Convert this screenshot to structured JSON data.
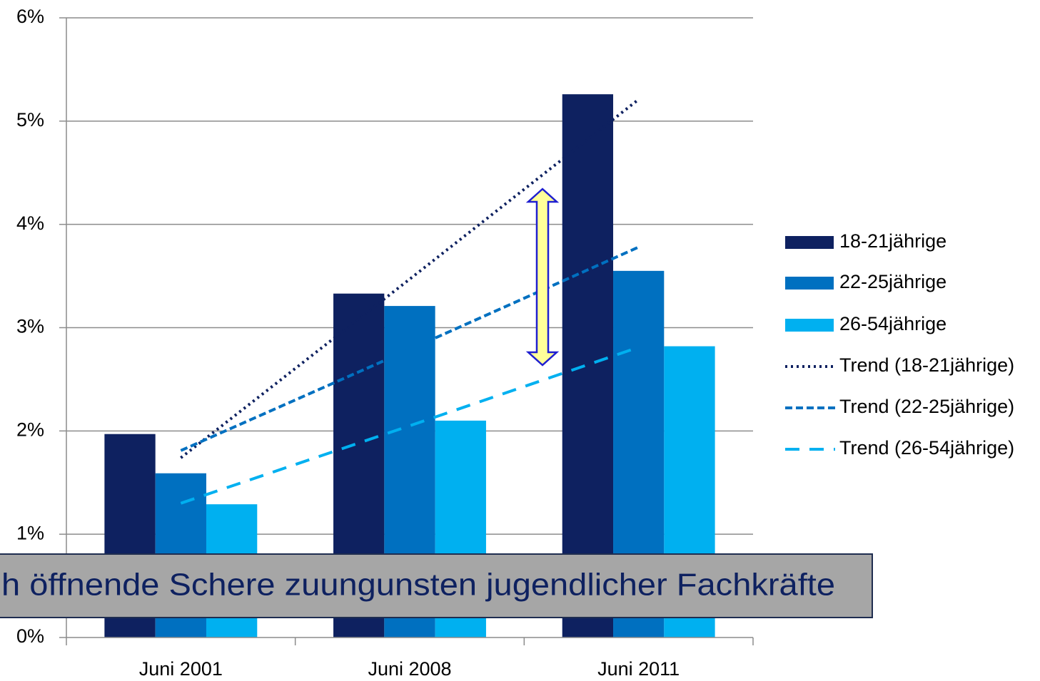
{
  "chart_data": {
    "type": "bar",
    "categories": [
      "Juni 2001",
      "Juni 2008",
      "Juni 2011"
    ],
    "series": [
      {
        "name": "18-21jährige",
        "color": "#0e2160",
        "values": [
          1.97,
          3.33,
          5.26
        ]
      },
      {
        "name": "22-25jährige",
        "color": "#0070c0",
        "values": [
          1.59,
          3.21,
          3.55
        ]
      },
      {
        "name": "26-54jährige",
        "color": "#00b0f0",
        "values": [
          1.29,
          2.1,
          2.82
        ]
      }
    ],
    "trends": [
      {
        "name": "Trend (18-21jährige)",
        "color": "#0e2160",
        "values": [
          1.74,
          3.47,
          5.21
        ]
      },
      {
        "name": "Trend (22-25jährige)",
        "color": "#0070c0",
        "values": [
          1.81,
          2.79,
          3.78
        ]
      },
      {
        "name": "Trend (26-54jährige)",
        "color": "#00b0f0",
        "values": [
          1.3,
          2.05,
          2.81
        ]
      }
    ],
    "ylim": [
      0,
      6
    ],
    "yticks": [
      {
        "value": 0,
        "label": "0%"
      },
      {
        "value": 1,
        "label": "1%"
      },
      {
        "value": 2,
        "label": "2%"
      },
      {
        "value": 3,
        "label": "3%"
      },
      {
        "value": 4,
        "label": "4%"
      },
      {
        "value": 5,
        "label": "5%"
      },
      {
        "value": 6,
        "label": "6%"
      }
    ],
    "grid": true,
    "legend": "right",
    "annotation": "h öffnende Schere zuungunsten jugendlicher Fachkräfte"
  }
}
